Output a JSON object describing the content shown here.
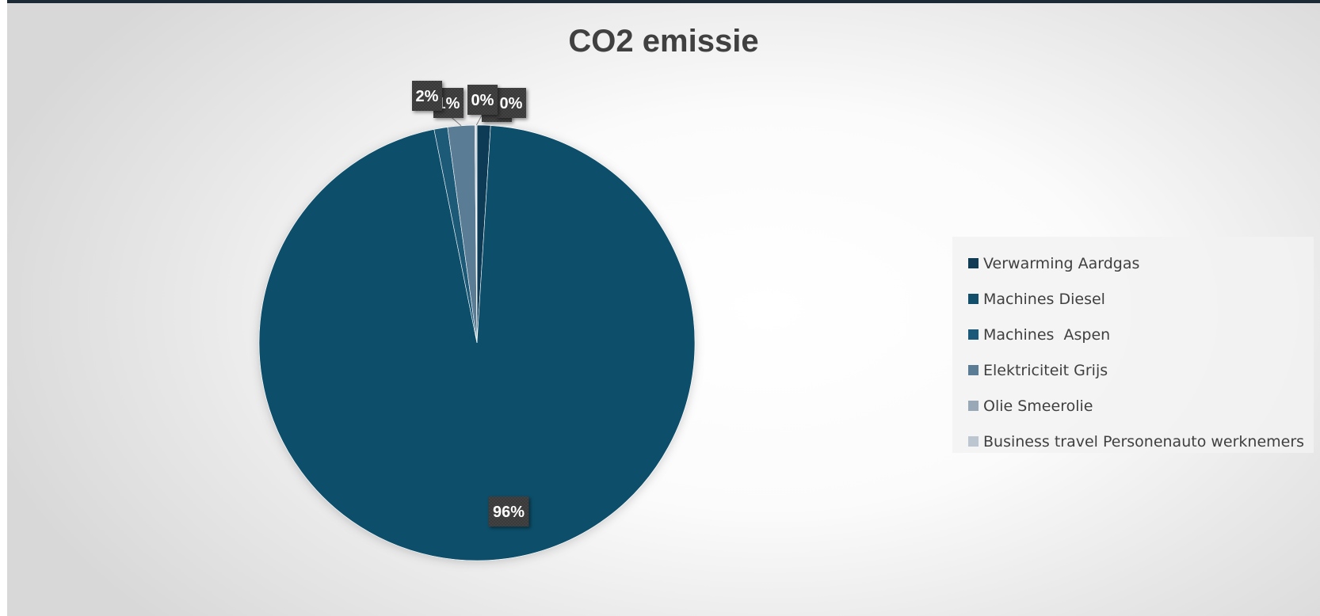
{
  "chart_data": {
    "type": "pie",
    "title": "CO2 emissie",
    "categories": [
      "Verwarming Aardgas",
      "Machines Diesel",
      "Machines  Aspen",
      "Elektriciteit Grijs",
      "Olie Smeerolie",
      "Business travel Personenauto werknemers"
    ],
    "values": [
      1,
      96,
      1,
      2,
      0,
      0
    ],
    "data_labels": [
      "1%",
      "96%",
      "1%",
      "2%",
      "0%",
      "0%"
    ],
    "colors": [
      "#0f3b55",
      "#114f6b",
      "#1a5a78",
      "#5a7d95",
      "#98a8b7",
      "#bcc6d0"
    ],
    "legend_position": "right"
  }
}
